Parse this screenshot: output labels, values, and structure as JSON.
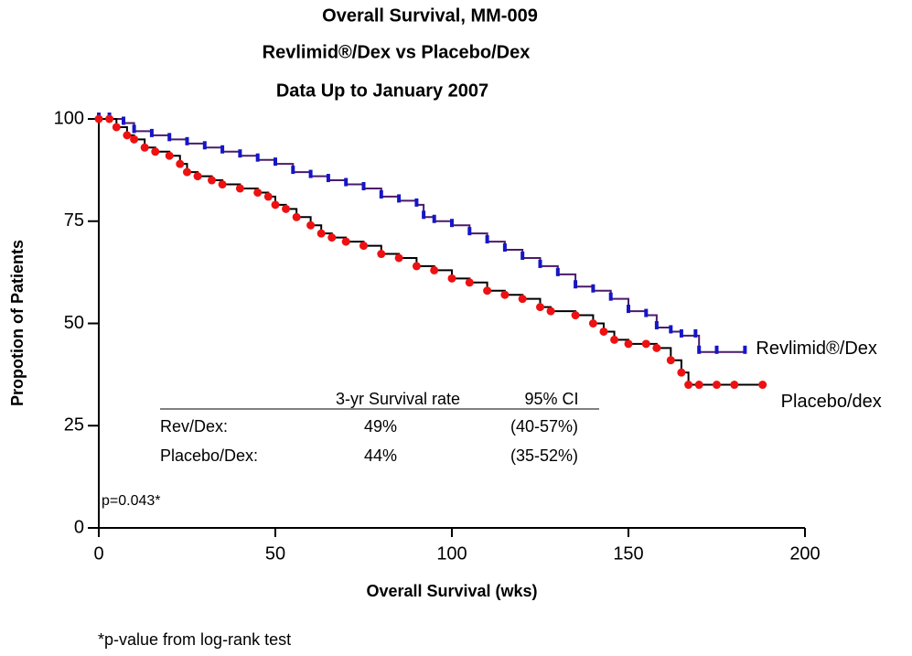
{
  "chart_data": {
    "type": "step",
    "title": "Overall Survival, MM-009",
    "subtitle": [
      "Revlimid®/Dex vs Placebo/Dex",
      "Data Up to January 2007"
    ],
    "x_label": "Overall Survival (wks)",
    "y_label": "Propotion of Patients",
    "xlim": [
      0,
      200
    ],
    "xticks": [
      0,
      50,
      100,
      150,
      200
    ],
    "ylim": [
      0,
      100
    ],
    "yticks": [
      0,
      25,
      50,
      75,
      100
    ],
    "series": [
      {
        "name": "Revlimid®/Dex",
        "color": "#1515c8",
        "line_color": "#4a1a6a",
        "x": [
          0,
          3,
          7,
          10,
          15,
          20,
          25,
          30,
          35,
          40,
          45,
          50,
          55,
          60,
          65,
          70,
          75,
          80,
          85,
          90,
          92,
          95,
          100,
          105,
          110,
          115,
          120,
          125,
          130,
          135,
          140,
          145,
          150,
          155,
          158,
          162,
          165,
          169,
          170,
          175,
          183
        ],
        "values": [
          100,
          100,
          99,
          97,
          96,
          95,
          94,
          93,
          92,
          91,
          90,
          89,
          87,
          86,
          85,
          84,
          83,
          81,
          80,
          79,
          76,
          75,
          74,
          72,
          70,
          68,
          66,
          64,
          62,
          59,
          58,
          56,
          53,
          52,
          49,
          48,
          47,
          47,
          43,
          43,
          43
        ]
      },
      {
        "name": "Placebo/dex",
        "color": "#ee1111",
        "line_color": "#000000",
        "x": [
          0,
          3,
          5,
          8,
          10,
          13,
          16,
          20,
          23,
          25,
          28,
          32,
          35,
          40,
          45,
          48,
          50,
          53,
          56,
          60,
          63,
          66,
          70,
          75,
          80,
          85,
          90,
          95,
          100,
          105,
          110,
          115,
          120,
          125,
          128,
          135,
          140,
          143,
          146,
          150,
          155,
          158,
          162,
          165,
          167,
          170,
          175,
          180,
          188
        ],
        "values": [
          100,
          100,
          98,
          96,
          95,
          93,
          92,
          91,
          89,
          87,
          86,
          85,
          84,
          83,
          82,
          81,
          79,
          78,
          76,
          74,
          72,
          71,
          70,
          69,
          67,
          66,
          64,
          63,
          61,
          60,
          58,
          57,
          56,
          54,
          53,
          52,
          50,
          48,
          46,
          45,
          45,
          44,
          41,
          38,
          35,
          35,
          35,
          35,
          35
        ]
      }
    ],
    "summary_table": {
      "columns": [
        "3-yr Survival rate",
        "95% CI"
      ],
      "rows": [
        [
          "Rev/Dex:",
          "49%",
          "(40-57%)"
        ],
        [
          "Placebo/Dex:",
          "44%",
          "(35-52%)"
        ]
      ]
    },
    "p_value_note": "p=0.043*",
    "footnote": "*p-value from log-rank test"
  }
}
